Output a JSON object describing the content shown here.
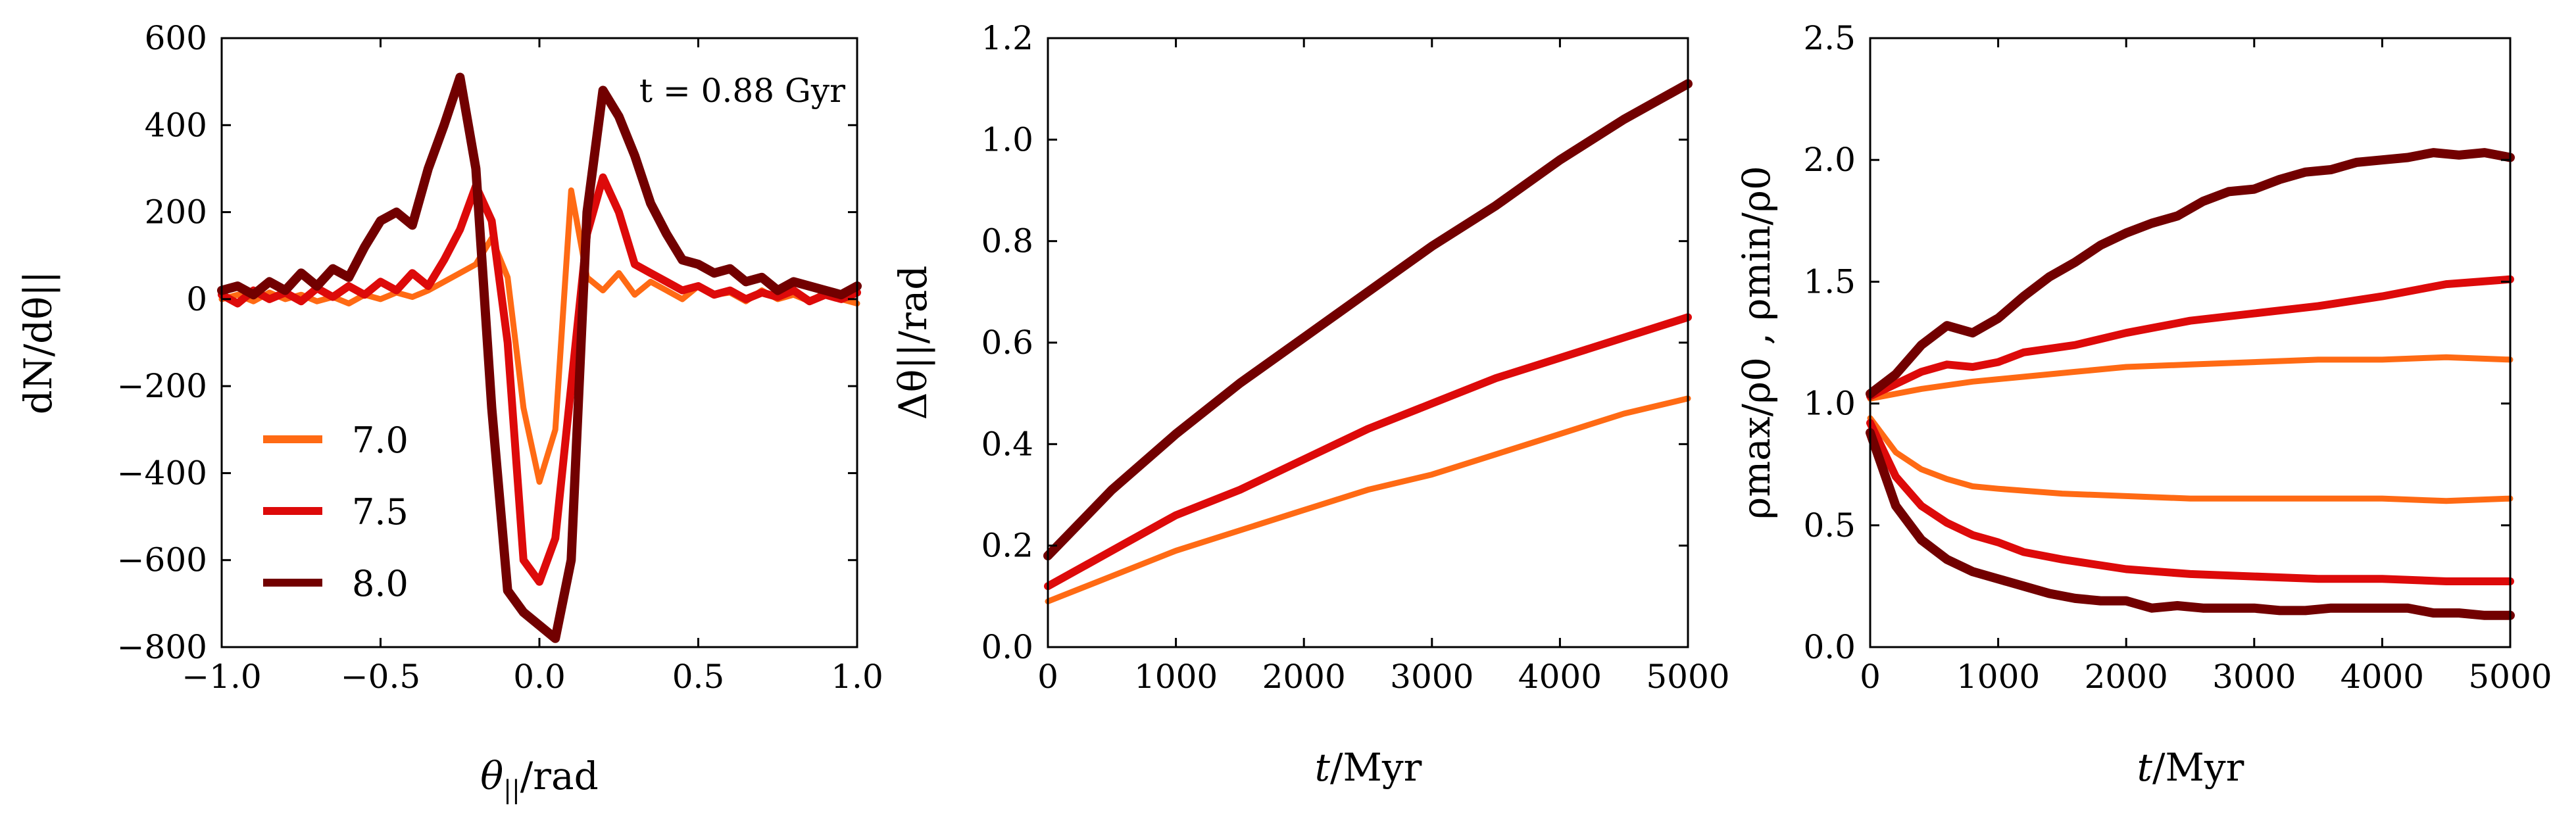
{
  "colors": {
    "c70": "#ff6a14",
    "c75": "#dd0a0a",
    "c80": "#720000"
  },
  "chart_data": [
    {
      "type": "line",
      "xlabel_main": "θ",
      "xlabel_sub": "||",
      "xlabel_unit": "/rad",
      "ylabel": "dN/dθ||",
      "xlim": [
        -1.0,
        1.0
      ],
      "ylim": [
        -800,
        600
      ],
      "xticks": [
        "−1.0",
        "−0.5",
        "0.0",
        "0.5",
        "1.0"
      ],
      "yticks": [
        "−800",
        "−600",
        "−400",
        "−200",
        "0",
        "200",
        "400",
        "600"
      ],
      "annotation": "t = 0.88 Gyr",
      "legend": {
        "placement": "lower-left",
        "entries": [
          "7.0",
          "7.5",
          "8.0"
        ]
      },
      "series": [
        {
          "name": "7.0",
          "color": "#ff6a14",
          "x": [
            -1.0,
            -0.95,
            -0.9,
            -0.85,
            -0.8,
            -0.75,
            -0.7,
            -0.65,
            -0.6,
            -0.55,
            -0.5,
            -0.45,
            -0.4,
            -0.35,
            -0.3,
            -0.25,
            -0.2,
            -0.15,
            -0.1,
            -0.05,
            0.0,
            0.05,
            0.1,
            0.15,
            0.2,
            0.25,
            0.3,
            0.35,
            0.4,
            0.45,
            0.5,
            0.55,
            0.6,
            0.65,
            0.7,
            0.75,
            0.8,
            0.85,
            0.9,
            0.95,
            1.0
          ],
          "y": [
            0,
            10,
            -5,
            15,
            0,
            10,
            -5,
            5,
            -10,
            10,
            0,
            15,
            5,
            20,
            40,
            60,
            80,
            140,
            50,
            -250,
            -420,
            -300,
            250,
            50,
            20,
            60,
            10,
            40,
            20,
            0,
            30,
            10,
            15,
            -5,
            20,
            0,
            10,
            -5,
            15,
            0,
            -10
          ]
        },
        {
          "name": "7.5",
          "color": "#dd0a0a",
          "x": [
            -1.0,
            -0.95,
            -0.9,
            -0.85,
            -0.8,
            -0.75,
            -0.7,
            -0.65,
            -0.6,
            -0.55,
            -0.5,
            -0.45,
            -0.4,
            -0.35,
            -0.3,
            -0.25,
            -0.2,
            -0.15,
            -0.1,
            -0.05,
            0.0,
            0.05,
            0.1,
            0.15,
            0.2,
            0.25,
            0.3,
            0.35,
            0.4,
            0.45,
            0.5,
            0.55,
            0.6,
            0.65,
            0.7,
            0.75,
            0.8,
            0.85,
            0.9,
            0.95,
            1.0
          ],
          "y": [
            10,
            -10,
            20,
            0,
            15,
            -5,
            25,
            5,
            30,
            10,
            40,
            20,
            60,
            30,
            90,
            160,
            260,
            180,
            -100,
            -600,
            -650,
            -550,
            -200,
            150,
            280,
            200,
            80,
            60,
            40,
            20,
            30,
            10,
            20,
            0,
            15,
            5,
            20,
            -5,
            10,
            0,
            15
          ]
        },
        {
          "name": "8.0",
          "color": "#720000",
          "x": [
            -1.0,
            -0.95,
            -0.9,
            -0.85,
            -0.8,
            -0.75,
            -0.7,
            -0.65,
            -0.6,
            -0.55,
            -0.5,
            -0.45,
            -0.4,
            -0.35,
            -0.3,
            -0.25,
            -0.2,
            -0.15,
            -0.1,
            -0.05,
            0.0,
            0.05,
            0.1,
            0.15,
            0.2,
            0.25,
            0.3,
            0.35,
            0.4,
            0.45,
            0.5,
            0.55,
            0.6,
            0.65,
            0.7,
            0.75,
            0.8,
            0.85,
            0.9,
            0.95,
            1.0
          ],
          "y": [
            20,
            30,
            10,
            40,
            20,
            60,
            30,
            70,
            50,
            120,
            180,
            200,
            170,
            300,
            400,
            510,
            300,
            -250,
            -670,
            -720,
            -750,
            -780,
            -600,
            200,
            480,
            420,
            330,
            220,
            150,
            90,
            80,
            60,
            70,
            40,
            50,
            20,
            40,
            30,
            20,
            10,
            30
          ]
        }
      ]
    },
    {
      "type": "line",
      "xlabel_main": "t",
      "xlabel_unit": "/Myr",
      "ylabel": "Δθ||/rad",
      "xlim": [
        0,
        5000
      ],
      "ylim": [
        0.0,
        1.2
      ],
      "xticks": [
        "0",
        "1000",
        "2000",
        "3000",
        "4000",
        "5000"
      ],
      "yticks": [
        "0.0",
        "0.2",
        "0.4",
        "0.6",
        "0.8",
        "1.0",
        "1.2"
      ],
      "series": [
        {
          "name": "7.0",
          "color": "#ff6a14",
          "x": [
            0,
            500,
            1000,
            1500,
            2000,
            2500,
            3000,
            3500,
            4000,
            4500,
            5000
          ],
          "y": [
            0.09,
            0.14,
            0.19,
            0.23,
            0.27,
            0.31,
            0.34,
            0.38,
            0.42,
            0.46,
            0.49
          ]
        },
        {
          "name": "7.5",
          "color": "#dd0a0a",
          "x": [
            0,
            500,
            1000,
            1500,
            2000,
            2500,
            3000,
            3500,
            4000,
            4500,
            5000
          ],
          "y": [
            0.12,
            0.19,
            0.26,
            0.31,
            0.37,
            0.43,
            0.48,
            0.53,
            0.57,
            0.61,
            0.65
          ]
        },
        {
          "name": "8.0",
          "color": "#720000",
          "x": [
            0,
            500,
            1000,
            1500,
            2000,
            2500,
            3000,
            3500,
            4000,
            4500,
            5000
          ],
          "y": [
            0.18,
            0.31,
            0.42,
            0.52,
            0.61,
            0.7,
            0.79,
            0.87,
            0.96,
            1.04,
            1.11
          ]
        }
      ]
    },
    {
      "type": "line",
      "xlabel_main": "t",
      "xlabel_unit": "/Myr",
      "ylabel": "ρmax/ρ0 , ρmin/ρ0",
      "xlim": [
        0,
        5000
      ],
      "ylim": [
        0.0,
        2.5
      ],
      "xticks": [
        "0",
        "1000",
        "2000",
        "3000",
        "4000",
        "5000"
      ],
      "yticks": [
        "0.0",
        "0.5",
        "1.0",
        "1.5",
        "2.0",
        "2.5"
      ],
      "series": [
        {
          "name": "7.0",
          "color": "#ff6a14",
          "x": [
            0,
            400,
            800,
            1200,
            1600,
            2000,
            2500,
            3000,
            3500,
            4000,
            4500,
            5000
          ],
          "y": [
            1.02,
            1.06,
            1.09,
            1.11,
            1.13,
            1.15,
            1.16,
            1.17,
            1.18,
            1.18,
            1.19,
            1.18
          ]
        },
        {
          "name": "7.5",
          "color": "#dd0a0a",
          "x": [
            0,
            200,
            400,
            600,
            800,
            1000,
            1200,
            1600,
            2000,
            2500,
            3000,
            3500,
            4000,
            4500,
            5000
          ],
          "y": [
            1.03,
            1.08,
            1.13,
            1.16,
            1.15,
            1.17,
            1.21,
            1.24,
            1.29,
            1.34,
            1.37,
            1.4,
            1.44,
            1.49,
            1.51
          ]
        },
        {
          "name": "8.0",
          "color": "#720000",
          "x": [
            0,
            200,
            400,
            600,
            800,
            1000,
            1200,
            1400,
            1600,
            1800,
            2000,
            2200,
            2400,
            2600,
            2800,
            3000,
            3200,
            3400,
            3600,
            3800,
            4000,
            4200,
            4400,
            4600,
            4800,
            5000
          ],
          "y": [
            1.04,
            1.12,
            1.24,
            1.32,
            1.29,
            1.35,
            1.44,
            1.52,
            1.58,
            1.65,
            1.7,
            1.74,
            1.77,
            1.83,
            1.87,
            1.88,
            1.92,
            1.95,
            1.96,
            1.99,
            2.0,
            2.01,
            2.03,
            2.02,
            2.03,
            2.01
          ]
        },
        {
          "name": "7.0",
          "color": "#ff6a14",
          "x": [
            0,
            200,
            400,
            600,
            800,
            1000,
            1500,
            2000,
            2500,
            3000,
            3500,
            4000,
            4500,
            5000
          ],
          "y": [
            0.94,
            0.8,
            0.73,
            0.69,
            0.66,
            0.65,
            0.63,
            0.62,
            0.61,
            0.61,
            0.61,
            0.61,
            0.6,
            0.61
          ]
        },
        {
          "name": "7.5",
          "color": "#dd0a0a",
          "x": [
            0,
            200,
            400,
            600,
            800,
            1000,
            1200,
            1500,
            2000,
            2500,
            3000,
            3500,
            4000,
            4500,
            5000
          ],
          "y": [
            0.92,
            0.7,
            0.58,
            0.51,
            0.46,
            0.43,
            0.39,
            0.36,
            0.32,
            0.3,
            0.29,
            0.28,
            0.28,
            0.27,
            0.27
          ]
        },
        {
          "name": "8.0",
          "color": "#720000",
          "x": [
            0,
            200,
            400,
            600,
            800,
            1000,
            1200,
            1400,
            1600,
            1800,
            2000,
            2200,
            2400,
            2600,
            2800,
            3000,
            3200,
            3400,
            3600,
            3800,
            4000,
            4200,
            4400,
            4600,
            4800,
            5000
          ],
          "y": [
            0.88,
            0.58,
            0.44,
            0.36,
            0.31,
            0.28,
            0.25,
            0.22,
            0.2,
            0.19,
            0.19,
            0.16,
            0.17,
            0.16,
            0.16,
            0.16,
            0.15,
            0.15,
            0.16,
            0.16,
            0.16,
            0.16,
            0.14,
            0.14,
            0.13,
            0.13
          ]
        }
      ]
    }
  ]
}
